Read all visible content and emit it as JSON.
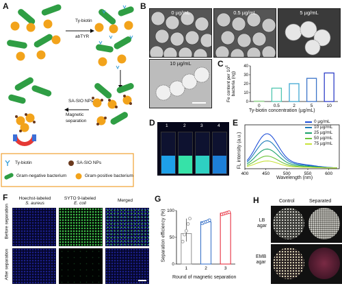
{
  "panel_labels": {
    "a": "A",
    "b": "B",
    "c": "C",
    "d": "D",
    "e": "E",
    "f": "F",
    "g": "G",
    "h": "H"
  },
  "panelA": {
    "step1_line1": "Ty-biotin",
    "step1_line2": "abTYR",
    "step2": "SA-SIO NPs",
    "step3_line1": "Magnetic",
    "step3_line2": "separation",
    "legend": {
      "ty_biotin": "Ty-biotin",
      "sa_sio": "SA-SIO NPs",
      "gram_neg": "Gram-negative bacterium",
      "gram_pos": "Gram-positive bacterium"
    },
    "colors": {
      "gram_neg": "#2f9e44",
      "gram_pos": "#f2a31b",
      "legend_border": "#f0a030",
      "ty": "#3aa0d8",
      "np": "#6b3a1e"
    }
  },
  "panelB": {
    "labels": [
      "0 µg/mL",
      "0.5 µg/mL",
      "5 µg/mL",
      "10 µg/mL"
    ]
  },
  "chartC": {
    "type": "bar",
    "ylabel_line1": "Fe content per 10",
    "ylabel_sup": "6",
    "ylabel_line2": "bacteria (ng)",
    "xlabel": "Ty-biotin concentration (µg/mL)",
    "categories": [
      "0",
      "0.5",
      "2",
      "5",
      "10"
    ],
    "values": [
      0.5,
      15,
      20,
      26,
      32
    ],
    "ylim": [
      0,
      40
    ],
    "yticks": [
      "0",
      "10",
      "20",
      "30",
      "40"
    ],
    "colors": [
      "#9fd89a",
      "#4fc6b0",
      "#3fa8d2",
      "#3b74c9",
      "#2f3fc8"
    ]
  },
  "panelD": {
    "labels": [
      "1",
      "2",
      "3",
      "4"
    ],
    "colors": [
      "#1ea0e8",
      "#36e2a8",
      "#2ed0c2",
      "#1d7fd8"
    ]
  },
  "chartE": {
    "type": "line",
    "ylabel": "FL intensity (a.u.)",
    "xlabel": "Wavelength (nm)",
    "xticks": [
      "400",
      "450",
      "500",
      "550",
      "600"
    ],
    "xlim": [
      400,
      625
    ],
    "ylim": [
      0,
      250
    ],
    "series": [
      {
        "name": "0 µg/mL",
        "color": "#1f4fd8",
        "peak": 195
      },
      {
        "name": "10 µg/mL",
        "color": "#1a7ab8",
        "peak": 155
      },
      {
        "name": "25 µg/mL",
        "color": "#19a06a",
        "peak": 108
      },
      {
        "name": "50 µg/mL",
        "color": "#6cc43a",
        "peak": 68
      },
      {
        "name": "75 µg/mL",
        "color": "#c8e23a",
        "peak": 40
      }
    ]
  },
  "panelF": {
    "col1_line1": "Hoechst-labeled",
    "col1_line2": "S. aureus",
    "col2_line1": "SYTO 9-labeled",
    "col2_line2": "E. coli",
    "col3": "Merged",
    "row1": "Before separation",
    "row2": "After separation"
  },
  "chartG": {
    "type": "bar",
    "ylabel": "Separation efficiency (%)",
    "xlabel": "Round of magnetic separation",
    "categories": [
      "1",
      "2",
      "3"
    ],
    "values": [
      57,
      79,
      95
    ],
    "points": [
      [
        42,
        55,
        62,
        75,
        85
      ],
      [
        76,
        78,
        79,
        80,
        82
      ],
      [
        93,
        94,
        95,
        96,
        97
      ]
    ],
    "ylim": [
      0,
      100
    ],
    "yticks": [
      "0",
      "50",
      "100"
    ],
    "colors": [
      "#999999",
      "#3b74c9",
      "#e83040"
    ]
  },
  "panelH": {
    "col1": "Control",
    "col2": "Separated",
    "row1_line1": "LB",
    "row1_line2": "agar",
    "row2_line1": "EMB",
    "row2_line2": "agar"
  }
}
